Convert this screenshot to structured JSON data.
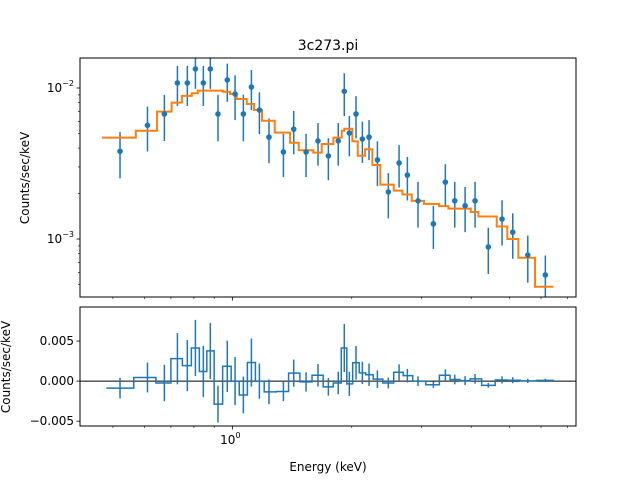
{
  "chart_data": [
    {
      "type": "scatter",
      "title": "3c273.pi",
      "xlabel": "",
      "ylabel": "Counts/sec/keV",
      "xscale": "log",
      "yscale": "log",
      "xlim": [
        0.413,
        7.35
      ],
      "ylim": [
        0.000413,
        0.0158
      ],
      "yticks": [
        {
          "value": 0.01,
          "base": "10",
          "exp": "−2"
        },
        {
          "value": 0.001,
          "base": "10",
          "exp": "−3"
        }
      ],
      "grid": false,
      "colors": {
        "data": "#1f77b4",
        "model": "#ff7f0e"
      },
      "data": {
        "x": [
          0.521,
          0.611,
          0.674,
          0.727,
          0.77,
          0.807,
          0.845,
          0.88,
          0.92,
          0.971,
          1.016,
          1.066,
          1.117,
          1.17,
          1.237,
          1.345,
          1.428,
          1.534,
          1.644,
          1.746,
          1.849,
          1.915,
          1.972,
          2.05,
          2.127,
          2.211,
          2.321,
          2.473,
          2.632,
          2.762,
          2.938,
          3.212,
          3.443,
          3.636,
          3.861,
          4.091,
          4.418,
          4.785,
          5.092,
          5.556,
          6.152
        ],
        "y": [
          0.00381,
          0.00566,
          0.00673,
          0.0108,
          0.0108,
          0.01337,
          0.0108,
          0.01337,
          0.00673,
          0.0113,
          0.00913,
          0.00673,
          0.01015,
          0.00715,
          0.00473,
          0.00377,
          0.00534,
          0.00377,
          0.00446,
          0.00355,
          0.00446,
          0.00951,
          0.00503,
          0.00673,
          0.00459,
          0.00473,
          0.00334,
          0.00205,
          0.00319,
          0.00265,
          0.00179,
          0.00126,
          0.00238,
          0.00179,
          0.00166,
          0.00179,
          0.000886,
          0.001355,
          0.00111,
          0.000783,
          0.000578
        ],
        "yerr": [
          0.00129,
          0.00186,
          0.00227,
          0.0032,
          0.0032,
          0.0035,
          0.0032,
          0.0035,
          0.0023,
          0.0032,
          0.003,
          0.0023,
          0.003,
          0.0022,
          0.00155,
          0.0012,
          0.0017,
          0.0012,
          0.0014,
          0.0011,
          0.0014,
          0.003,
          0.0015,
          0.0021,
          0.0014,
          0.0014,
          0.0011,
          0.00068,
          0.001,
          0.00085,
          0.0006,
          0.0004,
          0.00075,
          0.0006,
          0.00055,
          0.0006,
          0.0003,
          0.00045,
          0.00037,
          0.00027,
          0.0002
        ]
      },
      "model": {
        "edges": [
          0.469,
          0.571,
          0.646,
          0.703,
          0.746,
          0.79,
          0.818,
          0.946,
          0.987,
          1.026,
          1.087,
          1.134,
          1.188,
          1.279,
          1.398,
          1.47,
          1.6,
          1.68,
          1.798,
          1.887,
          1.915,
          2.007,
          2.071,
          2.16,
          2.254,
          2.361,
          2.552,
          2.683,
          2.833,
          3.042,
          3.319,
          3.504,
          3.99,
          4.17,
          4.64,
          4.934,
          5.26,
          5.794,
          6.446
        ],
        "values": [
          0.00469,
          0.00521,
          0.00697,
          0.008,
          0.00886,
          0.00923,
          0.0096,
          0.00945,
          0.00913,
          0.00846,
          0.00783,
          0.00715,
          0.00607,
          0.00506,
          0.00434,
          0.00387,
          0.00373,
          0.00426,
          0.00469,
          0.00521,
          0.00537,
          0.00444,
          0.00356,
          0.00393,
          0.00309,
          0.00229,
          0.00209,
          0.00197,
          0.00179,
          0.00171,
          0.00165,
          0.00159,
          0.00151,
          0.00141,
          0.00121,
          0.001,
          0.000751,
          0.000483
        ]
      }
    },
    {
      "type": "line",
      "title": "",
      "xlabel": "Energy (keV)",
      "ylabel": "Counts/sec/keV",
      "xscale": "log",
      "xlim": [
        0.413,
        7.35
      ],
      "ylim": [
        -0.0056,
        0.00925
      ],
      "xticks": [
        {
          "value": 1,
          "base": "10",
          "exp": "0"
        }
      ],
      "yticks": [
        {
          "value": 0.005,
          "label": "0.005"
        },
        {
          "value": 0,
          "label": "0.000"
        },
        {
          "value": -0.005,
          "label": "−0.005"
        }
      ],
      "reference_line": 0,
      "grid": false,
      "colors": {
        "residual": "#1f77b4"
      }
    }
  ]
}
